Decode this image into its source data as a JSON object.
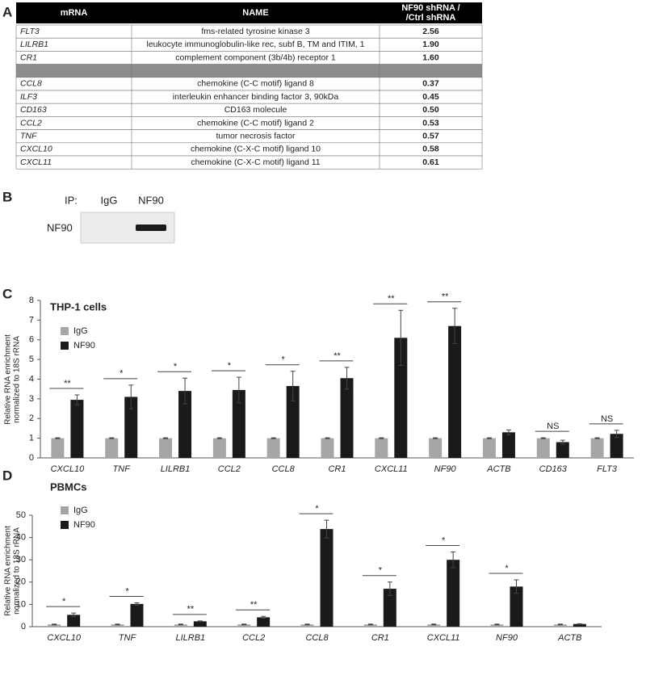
{
  "panels": [
    "A",
    "B",
    "C",
    "D"
  ],
  "table": {
    "header": [
      "mRNA",
      "NAME",
      [
        "NF90 shRNA /",
        "/Ctrl shRNA"
      ]
    ],
    "rows": [
      [
        "FLT3",
        "fms-related tyrosine kinase 3",
        "2.56"
      ],
      [
        "LILRB1",
        "leukocyte immunoglobulin-like rec, subf B, TM and ITIM, 1",
        "1.90"
      ],
      [
        "CR1",
        "complement component (3b/4b) receptor 1",
        "1.60"
      ],
      null,
      [
        "CCL8",
        "chemokine (C-C motif) ligand 8",
        "0.37"
      ],
      [
        "ILF3",
        "interleukin enhancer binding factor 3, 90kDa",
        "0.45"
      ],
      [
        "CD163",
        "CD163 molecule",
        "0.50"
      ],
      [
        "CCL2",
        "chemokine (C-C motif) ligand 2",
        "0.53"
      ],
      [
        "TNF",
        "tumor necrosis factor",
        "0.57"
      ],
      [
        "CXCL10",
        "chemokine (C-X-C motif) ligand 10",
        "0.58"
      ],
      [
        "CXCL11",
        "chemokine (C-X-C motif) ligand 11",
        "0.61"
      ]
    ]
  },
  "blot": {
    "ip_label": "IP:",
    "lanes": [
      "IgG",
      "NF90"
    ],
    "band_label": "NF90"
  },
  "chart_data": [
    {
      "type": "bar",
      "title": "THP-1 cells",
      "y_label": [
        "Relative RNA enrichment",
        "normalized to 18S rRNA"
      ],
      "categories": [
        "CXCL10",
        "TNF",
        "LILRB1",
        "CCL2",
        "CCL8",
        "CR1",
        "CXCL11",
        "NF90",
        "ACTB",
        "CD163",
        "FLT3"
      ],
      "series": [
        {
          "name": "IgG",
          "color": "#a6a6a6",
          "values": [
            1,
            1,
            1,
            1,
            1,
            1,
            1,
            1,
            1,
            1,
            1
          ],
          "errors": [
            0.02,
            0.02,
            0.02,
            0.02,
            0.02,
            0.02,
            0.02,
            0.02,
            0.02,
            0.02,
            0.02
          ]
        },
        {
          "name": "NF90",
          "color": "#1a1a1a",
          "values": [
            2.95,
            3.1,
            3.4,
            3.45,
            3.65,
            4.05,
            6.1,
            6.7,
            1.3,
            0.8,
            1.22
          ],
          "errors": [
            0.25,
            0.6,
            0.65,
            0.65,
            0.75,
            0.55,
            1.4,
            0.9,
            0.12,
            0.1,
            0.18
          ]
        }
      ],
      "significance": [
        "**",
        "*",
        "*",
        "*",
        "*",
        "**",
        "**",
        "**",
        null,
        "NS",
        "NS"
      ],
      "ylim": [
        0,
        8
      ],
      "yticks": [
        0,
        1,
        2,
        3,
        4,
        5,
        6,
        7,
        8
      ]
    },
    {
      "type": "bar",
      "title": "PBMCs",
      "y_label": [
        "Relative RNA enrichment",
        "normalized to 18S rRNA"
      ],
      "categories": [
        "CXCL10",
        "TNF",
        "LILRB1",
        "CCL2",
        "CCL8",
        "CR1",
        "CXCL11",
        "NF90",
        "ACTB"
      ],
      "series": [
        {
          "name": "IgG",
          "color": "#a6a6a6",
          "values": [
            1,
            1,
            1,
            1,
            1,
            1,
            1,
            1,
            1
          ],
          "errors": [
            0.2,
            0.2,
            0.2,
            0.2,
            0.2,
            0.2,
            0.2,
            0.2,
            0.2
          ]
        },
        {
          "name": "NF90",
          "color": "#1a1a1a",
          "values": [
            5.3,
            10.2,
            2.4,
            4.2,
            43.8,
            17,
            30,
            18,
            1.2
          ],
          "errors": [
            0.8,
            0.5,
            0.2,
            0.4,
            4,
            3,
            3.5,
            3,
            0.1
          ]
        }
      ],
      "significance": [
        "*",
        "*",
        "**",
        "**",
        "*",
        "*",
        "*",
        "*",
        null
      ],
      "ylim": [
        0,
        50
      ],
      "yticks": [
        0,
        10,
        20,
        30,
        40,
        50
      ]
    }
  ]
}
